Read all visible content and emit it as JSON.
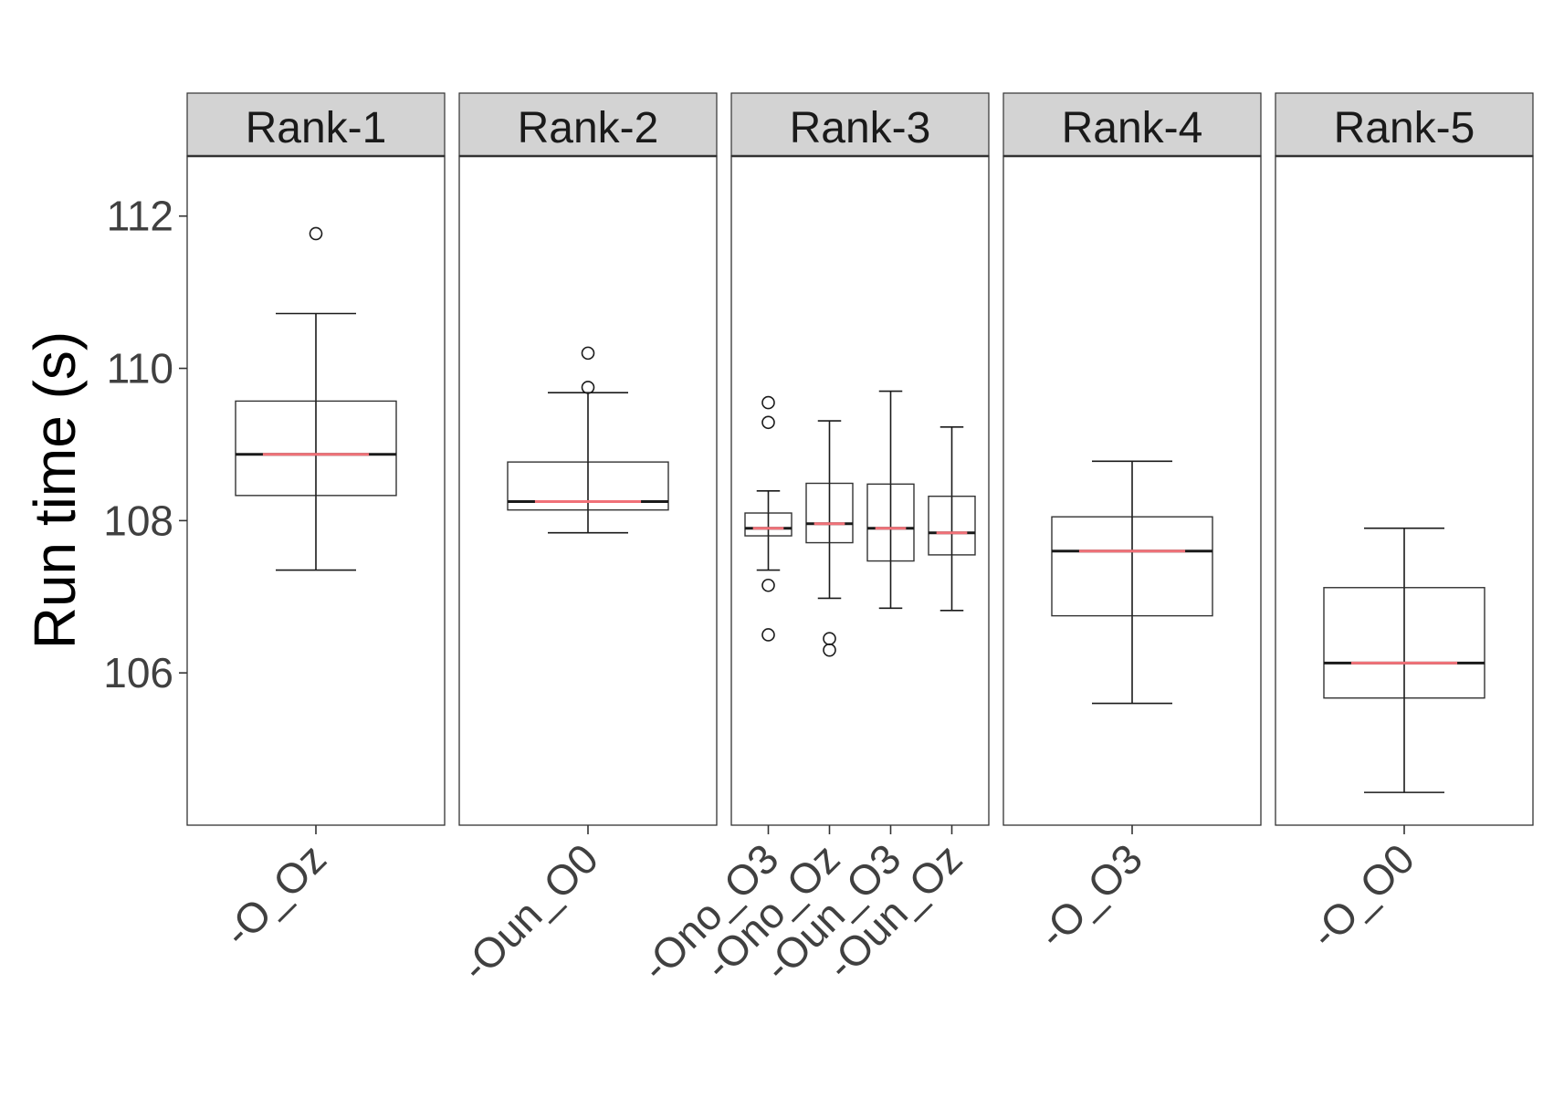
{
  "chart_data": {
    "type": "boxplot",
    "ylabel": "Run time (s)",
    "ylim": [
      104.0,
      112.8
    ],
    "y_ticks": [
      106,
      108,
      110,
      112
    ],
    "y_tick_labels": [
      "106",
      "108",
      "110",
      "112"
    ],
    "colors": {
      "mean_line": "#f07178",
      "strip": "#d3d3d3",
      "border": "#333333"
    },
    "panels": [
      {
        "title": "Rank-1",
        "groups": [
          {
            "label": "-O_Oz",
            "min": 107.35,
            "q1": 108.33,
            "median": 108.87,
            "q3": 109.57,
            "max": 110.72,
            "mean": 108.87,
            "outliers": [
              111.77
            ]
          }
        ]
      },
      {
        "title": "Rank-2",
        "groups": [
          {
            "label": "-Oun_O0",
            "min": 107.84,
            "q1": 108.14,
            "median": 108.25,
            "q3": 108.77,
            "max": 109.68,
            "mean": 108.25,
            "outliers": [
              110.2,
              109.75
            ]
          }
        ]
      },
      {
        "title": "Rank-3",
        "groups": [
          {
            "label": "-Ono_O3",
            "min": 107.35,
            "q1": 107.8,
            "median": 107.9,
            "q3": 108.1,
            "max": 108.39,
            "mean": 107.9,
            "outliers": [
              109.55,
              109.29,
              107.15,
              106.5
            ]
          },
          {
            "label": "-Ono_Oz",
            "min": 106.98,
            "q1": 107.71,
            "median": 107.96,
            "q3": 108.49,
            "max": 109.31,
            "mean": 107.96,
            "outliers": [
              106.45,
              106.3
            ]
          },
          {
            "label": "-Oun_O3",
            "min": 106.85,
            "q1": 107.47,
            "median": 107.9,
            "q3": 108.48,
            "max": 109.7,
            "mean": 107.9,
            "outliers": []
          },
          {
            "label": "-Oun_Oz",
            "min": 106.82,
            "q1": 107.55,
            "median": 107.84,
            "q3": 108.32,
            "max": 109.23,
            "mean": 107.84,
            "outliers": []
          }
        ]
      },
      {
        "title": "Rank-4",
        "groups": [
          {
            "label": "-O_O3",
            "min": 105.6,
            "q1": 106.75,
            "median": 107.6,
            "q3": 108.05,
            "max": 108.78,
            "mean": 107.6,
            "outliers": []
          }
        ]
      },
      {
        "title": "Rank-5",
        "groups": [
          {
            "label": "-O_O0",
            "min": 104.43,
            "q1": 105.67,
            "median": 106.13,
            "q3": 107.12,
            "max": 107.9,
            "mean": 106.13,
            "outliers": []
          }
        ]
      }
    ]
  }
}
